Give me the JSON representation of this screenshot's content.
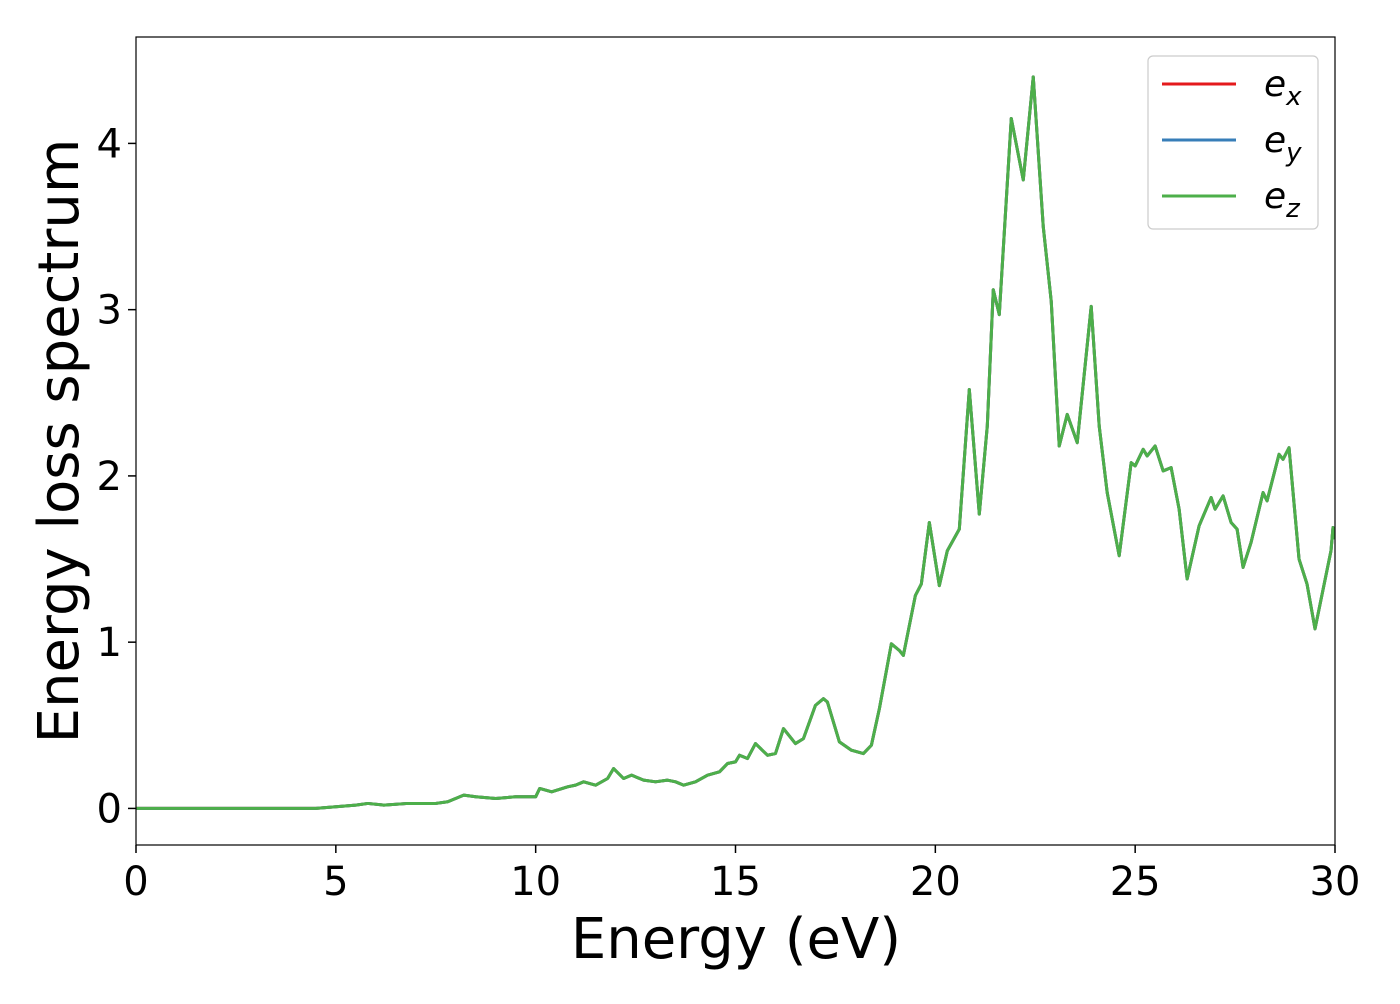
{
  "chart_data": {
    "type": "line",
    "x_label": "Energy (eV)",
    "y_label": "Energy loss spectrum",
    "x": [
      0,
      4.5,
      5,
      5.5,
      5.8,
      6.2,
      6.8,
      7,
      7.5,
      7.8,
      8.2,
      8.5,
      9,
      9.5,
      10,
      10.1,
      10.4,
      10.8,
      11,
      11.2,
      11.5,
      11.8,
      11.95,
      12.2,
      12.4,
      12.7,
      13,
      13.3,
      13.5,
      13.7,
      14,
      14.3,
      14.6,
      14.8,
      15,
      15.1,
      15.3,
      15.5,
      15.8,
      16,
      16.2,
      16.5,
      16.7,
      17,
      17.2,
      17.3,
      17.6,
      17.9,
      18.2,
      18.4,
      18.6,
      18.9,
      19.1,
      19.2,
      19.5,
      19.65,
      19.85,
      20.1,
      20.3,
      20.6,
      20.85,
      21.1,
      21.3,
      21.45,
      21.6,
      21.9,
      22.2,
      22.45,
      22.7,
      22.9,
      23.1,
      23.3,
      23.55,
      23.9,
      24.1,
      24.3,
      24.6,
      24.9,
      25,
      25.2,
      25.3,
      25.5,
      25.7,
      25.9,
      26.1,
      26.3,
      26.6,
      26.9,
      27,
      27.2,
      27.4,
      27.55,
      27.7,
      27.9,
      28.2,
      28.3,
      28.6,
      28.7,
      28.85,
      29.1,
      29.3,
      29.5,
      29.9,
      29.95,
      30
    ],
    "series": [
      {
        "name": "ex",
        "color": "#e41a1c",
        "values": [
          0,
          0,
          0.01,
          0.02,
          0.03,
          0.02,
          0.03,
          0.03,
          0.03,
          0.04,
          0.08,
          0.07,
          0.06,
          0.07,
          0.07,
          0.12,
          0.1,
          0.13,
          0.14,
          0.16,
          0.14,
          0.18,
          0.24,
          0.18,
          0.2,
          0.17,
          0.16,
          0.17,
          0.16,
          0.14,
          0.16,
          0.2,
          0.22,
          0.27,
          0.28,
          0.32,
          0.3,
          0.39,
          0.32,
          0.33,
          0.48,
          0.39,
          0.42,
          0.62,
          0.66,
          0.64,
          0.4,
          0.35,
          0.33,
          0.38,
          0.6,
          0.99,
          0.95,
          0.92,
          1.28,
          1.35,
          1.72,
          1.34,
          1.55,
          1.68,
          2.52,
          1.77,
          2.3,
          3.12,
          2.97,
          4.15,
          3.78,
          4.4,
          3.5,
          3.05,
          2.18,
          2.37,
          2.2,
          3.02,
          2.3,
          1.9,
          1.52,
          2.08,
          2.06,
          2.16,
          2.12,
          2.18,
          2.03,
          2.05,
          1.8,
          1.38,
          1.7,
          1.87,
          1.8,
          1.88,
          1.72,
          1.68,
          1.45,
          1.6,
          1.9,
          1.85,
          2.13,
          2.1,
          2.17,
          1.5,
          1.35,
          1.08,
          1.55,
          1.69,
          1.62
        ]
      },
      {
        "name": "ey",
        "color": "#377eb8",
        "values": [
          0,
          0,
          0.01,
          0.02,
          0.03,
          0.02,
          0.03,
          0.03,
          0.03,
          0.04,
          0.08,
          0.07,
          0.06,
          0.07,
          0.07,
          0.12,
          0.1,
          0.13,
          0.14,
          0.16,
          0.14,
          0.18,
          0.24,
          0.18,
          0.2,
          0.17,
          0.16,
          0.17,
          0.16,
          0.14,
          0.16,
          0.2,
          0.22,
          0.27,
          0.28,
          0.32,
          0.3,
          0.39,
          0.32,
          0.33,
          0.48,
          0.39,
          0.42,
          0.62,
          0.66,
          0.64,
          0.4,
          0.35,
          0.33,
          0.38,
          0.6,
          0.99,
          0.95,
          0.92,
          1.28,
          1.35,
          1.72,
          1.34,
          1.55,
          1.68,
          2.52,
          1.77,
          2.3,
          3.12,
          2.97,
          4.15,
          3.78,
          4.4,
          3.5,
          3.05,
          2.18,
          2.37,
          2.2,
          3.02,
          2.3,
          1.9,
          1.52,
          2.08,
          2.06,
          2.16,
          2.12,
          2.18,
          2.03,
          2.05,
          1.8,
          1.38,
          1.7,
          1.87,
          1.8,
          1.88,
          1.72,
          1.68,
          1.45,
          1.6,
          1.9,
          1.85,
          2.13,
          2.1,
          2.17,
          1.5,
          1.35,
          1.08,
          1.55,
          1.69,
          1.62
        ]
      },
      {
        "name": "ez",
        "color": "#4daf4a",
        "values": [
          0,
          0,
          0.01,
          0.02,
          0.03,
          0.02,
          0.03,
          0.03,
          0.03,
          0.04,
          0.08,
          0.07,
          0.06,
          0.07,
          0.07,
          0.12,
          0.1,
          0.13,
          0.14,
          0.16,
          0.14,
          0.18,
          0.24,
          0.18,
          0.2,
          0.17,
          0.16,
          0.17,
          0.16,
          0.14,
          0.16,
          0.2,
          0.22,
          0.27,
          0.28,
          0.32,
          0.3,
          0.39,
          0.32,
          0.33,
          0.48,
          0.39,
          0.42,
          0.62,
          0.66,
          0.64,
          0.4,
          0.35,
          0.33,
          0.38,
          0.6,
          0.99,
          0.95,
          0.92,
          1.28,
          1.35,
          1.72,
          1.34,
          1.55,
          1.68,
          2.52,
          1.77,
          2.3,
          3.12,
          2.97,
          4.15,
          3.78,
          4.4,
          3.5,
          3.05,
          2.18,
          2.37,
          2.2,
          3.02,
          2.3,
          1.9,
          1.52,
          2.08,
          2.06,
          2.16,
          2.12,
          2.18,
          2.03,
          2.05,
          1.8,
          1.38,
          1.7,
          1.87,
          1.8,
          1.88,
          1.72,
          1.68,
          1.45,
          1.6,
          1.9,
          1.85,
          2.13,
          2.1,
          2.17,
          1.5,
          1.35,
          1.08,
          1.55,
          1.69,
          1.62
        ]
      }
    ],
    "xlim": [
      0,
      30
    ],
    "xticks": [
      0,
      5,
      10,
      15,
      20,
      25,
      30
    ],
    "ylim": [
      -0.22,
      4.64
    ],
    "yticks": [
      0,
      1,
      2,
      3,
      4
    ],
    "grid": false,
    "legend": "upper right"
  }
}
